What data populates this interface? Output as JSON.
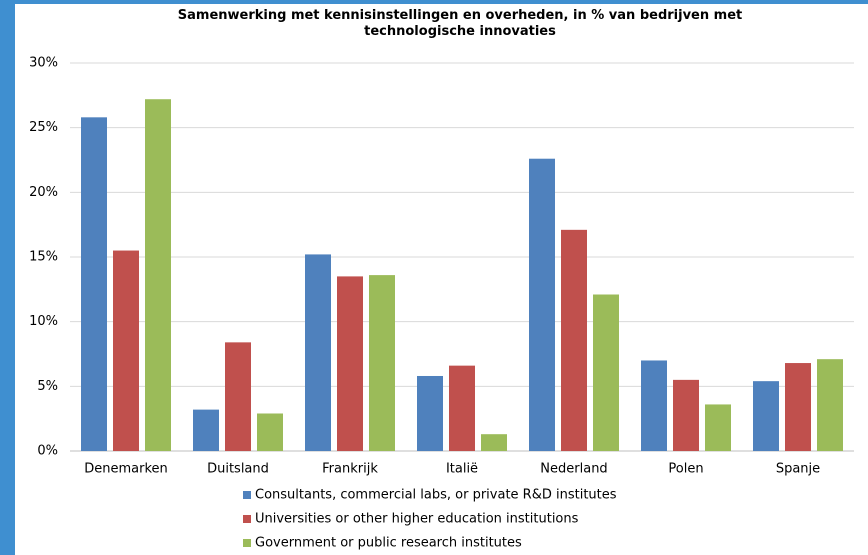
{
  "chart_data": {
    "type": "bar",
    "title": "Samenwerking met kennisinstellingen en overheden, in % van bedrijven met technologische innovaties",
    "categories": [
      "Denemarken",
      "Duitsland",
      "Frankrijk",
      "Italië",
      "Nederland",
      "Polen",
      "Spanje"
    ],
    "series": [
      {
        "name": "Consultants, commercial labs, or private R&D institutes",
        "color": "#4f81bd",
        "values": [
          25.8,
          3.2,
          15.2,
          5.8,
          22.6,
          7.0,
          5.4
        ]
      },
      {
        "name": "Universities or other higher education institutions",
        "color": "#c0504d",
        "values": [
          15.5,
          8.4,
          13.5,
          6.6,
          17.1,
          5.5,
          6.8
        ]
      },
      {
        "name": "Government or public research institutes",
        "color": "#9bbb59",
        "values": [
          27.2,
          2.9,
          13.6,
          1.3,
          12.1,
          3.6,
          7.1
        ]
      }
    ],
    "ylim": [
      0,
      30
    ],
    "yticks": [
      {
        "value": 0,
        "label": "0%"
      },
      {
        "value": 5,
        "label": "5%"
      },
      {
        "value": 10,
        "label": "10%"
      },
      {
        "value": 15,
        "label": "15%"
      },
      {
        "value": 20,
        "label": "20%"
      },
      {
        "value": 25,
        "label": "25%"
      },
      {
        "value": 30,
        "label": "30%"
      }
    ],
    "grid": true
  }
}
